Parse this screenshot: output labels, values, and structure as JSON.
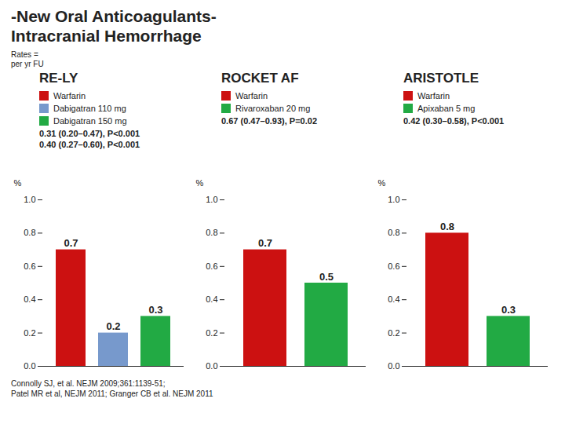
{
  "title": "-New Oral Anticoagulants-",
  "subtitle": "Intracranial Hemorrhage",
  "annotations": [
    "Rates =\nper yr FU"
  ],
  "caption": "Connolly SJ, et al. NEJM 2009;361:1139-51;\nPatel MR  et al, NEJM 2011; Granger CB et al. NEJM 2011",
  "chart_data": [
    {
      "type": "bar",
      "title": "RE-LY",
      "categories": [
        "Warfarin",
        "Dabigatran 110 mg",
        "Dabigatran 150 mg"
      ],
      "values": [
        0.7,
        0.2,
        0.3
      ],
      "colors": [
        "#cc1111",
        "#7799cc",
        "#22aa44"
      ],
      "ylabel": "%",
      "ylim": [
        0,
        1.0
      ],
      "yticks": [
        {
          "value": 0,
          "label": "0.0"
        },
        0.2,
        0.4,
        0.6,
        0.8,
        {
          "value": 1,
          "label": "1.0"
        }
      ],
      "data_labels": true,
      "tick_labels": "y",
      "legend": "top",
      "annotations": [
        "0.31 (0.20–0.47), P<0.001",
        "0.40 (0.27–0.60), P<0.001"
      ]
    },
    {
      "type": "bar",
      "title": "ROCKET AF",
      "categories": [
        "Warfarin",
        "Rivaroxaban 20 mg"
      ],
      "values": [
        0.7,
        0.5
      ],
      "colors": [
        "#cc1111",
        "#22aa44"
      ],
      "ylabel": "%",
      "ylim": [
        0,
        1.0
      ],
      "yticks": [
        {
          "value": 0,
          "label": "0.0"
        },
        0.2,
        0.4,
        0.6,
        0.8,
        {
          "value": 1,
          "label": "1.0"
        }
      ],
      "data_labels": true,
      "tick_labels": "y",
      "legend": "top",
      "annotations": [
        "0.67 (0.47–0.93), P=0.02"
      ]
    },
    {
      "type": "bar",
      "title": "ARISTOTLE",
      "categories": [
        "Warfarin",
        "Apixaban 5 mg"
      ],
      "values": [
        0.8,
        0.3
      ],
      "colors": [
        "#cc1111",
        "#22aa44"
      ],
      "ylabel": "%",
      "ylim": [
        0,
        1.0
      ],
      "yticks": [
        {
          "value": 0,
          "label": "0.0"
        },
        0.2,
        0.4,
        0.6,
        0.8,
        {
          "value": 1,
          "label": "1.0"
        }
      ],
      "data_labels": true,
      "tick_labels": "y",
      "legend": "top",
      "annotations": [
        "0.42 (0.30–0.58), P<0.001"
      ]
    }
  ]
}
